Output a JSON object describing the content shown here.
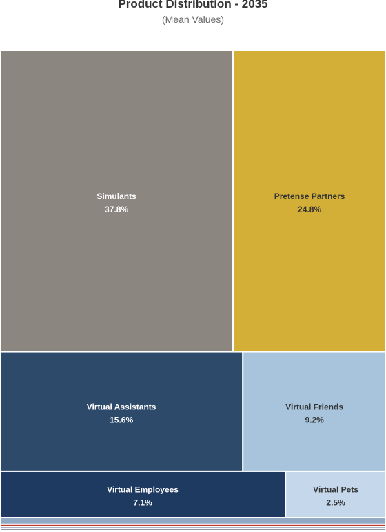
{
  "chart_data": {
    "type": "treemap",
    "title": "Product Distribution - 2035",
    "subtitle": "(Mean Values)",
    "items": [
      {
        "label": "Simulants",
        "value": 37.8,
        "display": "37.8%",
        "color": "#8b8680",
        "text_color": "#ffffff"
      },
      {
        "label": "Pretense Partners",
        "value": 24.8,
        "display": "24.8%",
        "color": "#d4af37",
        "text_color": "#333333"
      },
      {
        "label": "Virtual Assistants",
        "value": 15.6,
        "display": "15.6%",
        "color": "#2e4a6b",
        "text_color": "#ffffff"
      },
      {
        "label": "Virtual Friends",
        "value": 9.2,
        "display": "9.2%",
        "color": "#a7c4dc",
        "text_color": "#333333"
      },
      {
        "label": "Virtual Employees",
        "value": 7.1,
        "display": "7.1%",
        "color": "#1f3a61",
        "text_color": "#ffffff"
      },
      {
        "label": "Virtual Pets",
        "value": 2.5,
        "display": "2.5%",
        "color": "#c5d7ea",
        "text_color": "#333333"
      }
    ],
    "small_items": [
      {
        "value": 1.4,
        "color": "#8fa9c4"
      },
      {
        "value": 0.5,
        "color": "#c0392b"
      },
      {
        "value": 0.4,
        "color": "#7f8fa6"
      },
      {
        "value": 0.4,
        "color": "#5d6d8a"
      },
      {
        "value": 0.3,
        "color": "#9fb3c8"
      }
    ]
  }
}
